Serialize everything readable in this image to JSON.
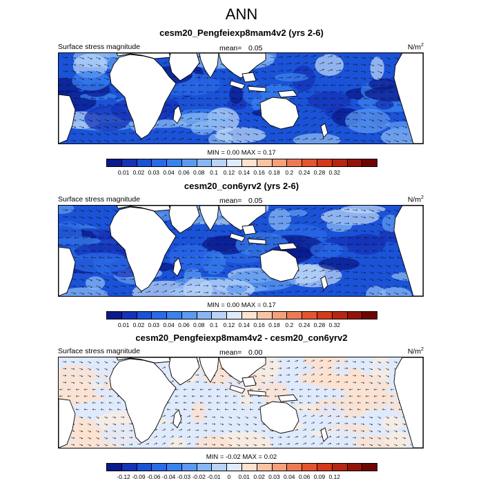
{
  "title": "ANN",
  "panels": [
    {
      "title": "cesm20_Pengfeiexp8mam4v2 (yrs 2-6)",
      "left_label": "Surface stress magnitude",
      "mean_label": "mean=",
      "mean_value": "0.05",
      "units": "N/m",
      "units_exp": "2",
      "min_max": "MIN =  0.00 MAX =  0.17",
      "field": "abs"
    },
    {
      "title": "cesm20_con6yrv2 (yrs 2-6)",
      "left_label": "Surface stress magnitude",
      "mean_label": "mean=",
      "mean_value": "0.05",
      "units": "N/m",
      "units_exp": "2",
      "min_max": "MIN =  0.00 MAX =  0.17",
      "field": "abs"
    },
    {
      "title": "cesm20_Pengfeiexp8mam4v2 - cesm20_con6yrv2",
      "left_label": "Surface stress magnitude",
      "mean_label": "mean=",
      "mean_value": "0.00",
      "units": "N/m",
      "units_exp": "2",
      "min_max": "MIN =  -0.02 MAX =  0.02",
      "field": "diff"
    }
  ],
  "colorbars": [
    {
      "colors": [
        "#0a1a8c",
        "#1433b8",
        "#1a52d8",
        "#2a6ae8",
        "#3a82f0",
        "#5c9af2",
        "#88b8f4",
        "#b8d4f8",
        "#dfeafc",
        "#fde2cf",
        "#f9c4a4",
        "#f4a07a",
        "#ee7a54",
        "#e4552f",
        "#d43a1a",
        "#b82612",
        "#941308",
        "#700404"
      ],
      "labels": [
        "0.01",
        "0.02",
        "0.03",
        "0.04",
        "0.06",
        "0.08",
        "0.1",
        "0.12",
        "0.14",
        "0.16",
        "0.18",
        "0.2",
        "0.24",
        "0.28",
        "0.32"
      ]
    },
    {
      "colors": [
        "#0a1a8c",
        "#1433b8",
        "#1a52d8",
        "#2a6ae8",
        "#3a82f0",
        "#5c9af2",
        "#88b8f4",
        "#b8d4f8",
        "#dfeafc",
        "#fde2cf",
        "#f9c4a4",
        "#f4a07a",
        "#ee7a54",
        "#e4552f",
        "#d43a1a",
        "#b82612",
        "#941308",
        "#700404"
      ],
      "labels": [
        "0.01",
        "0.02",
        "0.03",
        "0.04",
        "0.06",
        "0.08",
        "0.1",
        "0.12",
        "0.14",
        "0.16",
        "0.18",
        "0.2",
        "0.24",
        "0.28",
        "0.32"
      ]
    },
    {
      "colors": [
        "#0a1a8c",
        "#1433b8",
        "#1a52d8",
        "#2a6ae8",
        "#3a82f0",
        "#5c9af2",
        "#88b8f4",
        "#b8d4f8",
        "#dfeafc",
        "#fde2cf",
        "#f9c4a4",
        "#f4a07a",
        "#ee7a54",
        "#e4552f",
        "#d43a1a",
        "#b82612",
        "#941308",
        "#700404"
      ],
      "labels": [
        "-0.12",
        "-0.09",
        "-0.06",
        "-0.04",
        "-0.03",
        "-0.02",
        "-0.01",
        "0",
        "0.01",
        "0.02",
        "0.03",
        "0.04",
        "0.06",
        "0.09",
        "0.12"
      ]
    }
  ]
}
